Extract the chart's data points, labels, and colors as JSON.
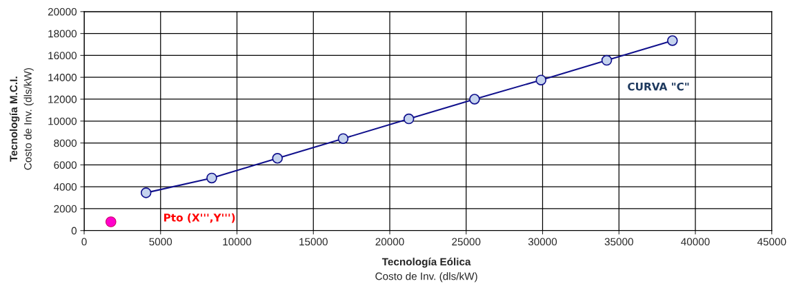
{
  "chart_data": {
    "type": "line",
    "xlabel": "Tecnología Eólica\nCosto de Inv. (dls/kW)",
    "ylabel": "Tecnología M.C.I.\nCosto de Inv. (dls/kW)",
    "xlim": [
      0,
      45000
    ],
    "xticks": [
      0,
      5000,
      10000,
      15000,
      20000,
      25000,
      30000,
      35000,
      40000,
      45000
    ],
    "ylim": [
      0,
      20000
    ],
    "yticks": [
      0,
      2000,
      4000,
      6000,
      8000,
      10000,
      12000,
      14000,
      16000,
      18000,
      20000
    ],
    "grid": true,
    "marker": "circle",
    "line_style": "solid",
    "legend": false,
    "series": [
      {
        "name": "CURVA \"C\"",
        "color": "#10108c",
        "x": [
          4050,
          8350,
          12650,
          16950,
          21250,
          25550,
          29900,
          34200,
          38500
        ],
        "values": [
          3450,
          4800,
          6600,
          8400,
          10200,
          12000,
          13750,
          15550,
          17350
        ]
      },
      {
        "type": "scatter",
        "color": "#ff00cc",
        "x": [
          1750
        ],
        "values": [
          800
        ]
      }
    ],
    "annotations": [
      "Pto (X''',Y''')"
    ]
  }
}
